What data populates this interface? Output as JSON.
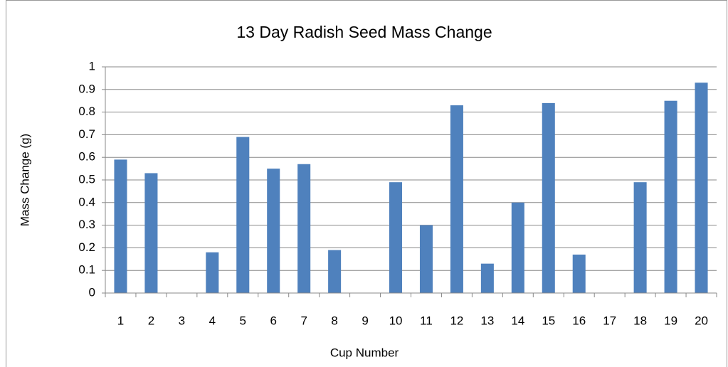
{
  "chart_data": {
    "type": "bar",
    "title": "13 Day Radish Seed Mass Change",
    "x_label": "Cup Number",
    "y_label": "Mass Change (g)",
    "categories": [
      "1",
      "2",
      "3",
      "4",
      "5",
      "6",
      "7",
      "8",
      "9",
      "10",
      "11",
      "12",
      "13",
      "14",
      "15",
      "16",
      "17",
      "18",
      "19",
      "20"
    ],
    "values": [
      0.59,
      0.53,
      0,
      0.18,
      0.69,
      0.55,
      0.57,
      0.19,
      0,
      0.49,
      0.3,
      0.83,
      0.13,
      0.4,
      0.84,
      0.17,
      0,
      0.49,
      0.85,
      0.93
    ],
    "color": "#4f81bd",
    "ylim": [
      0,
      1
    ],
    "yticks": [
      0,
      0.1,
      0.2,
      0.3,
      0.4,
      0.5,
      0.6,
      0.7,
      0.8,
      0.9,
      1
    ],
    "grid": true
  }
}
